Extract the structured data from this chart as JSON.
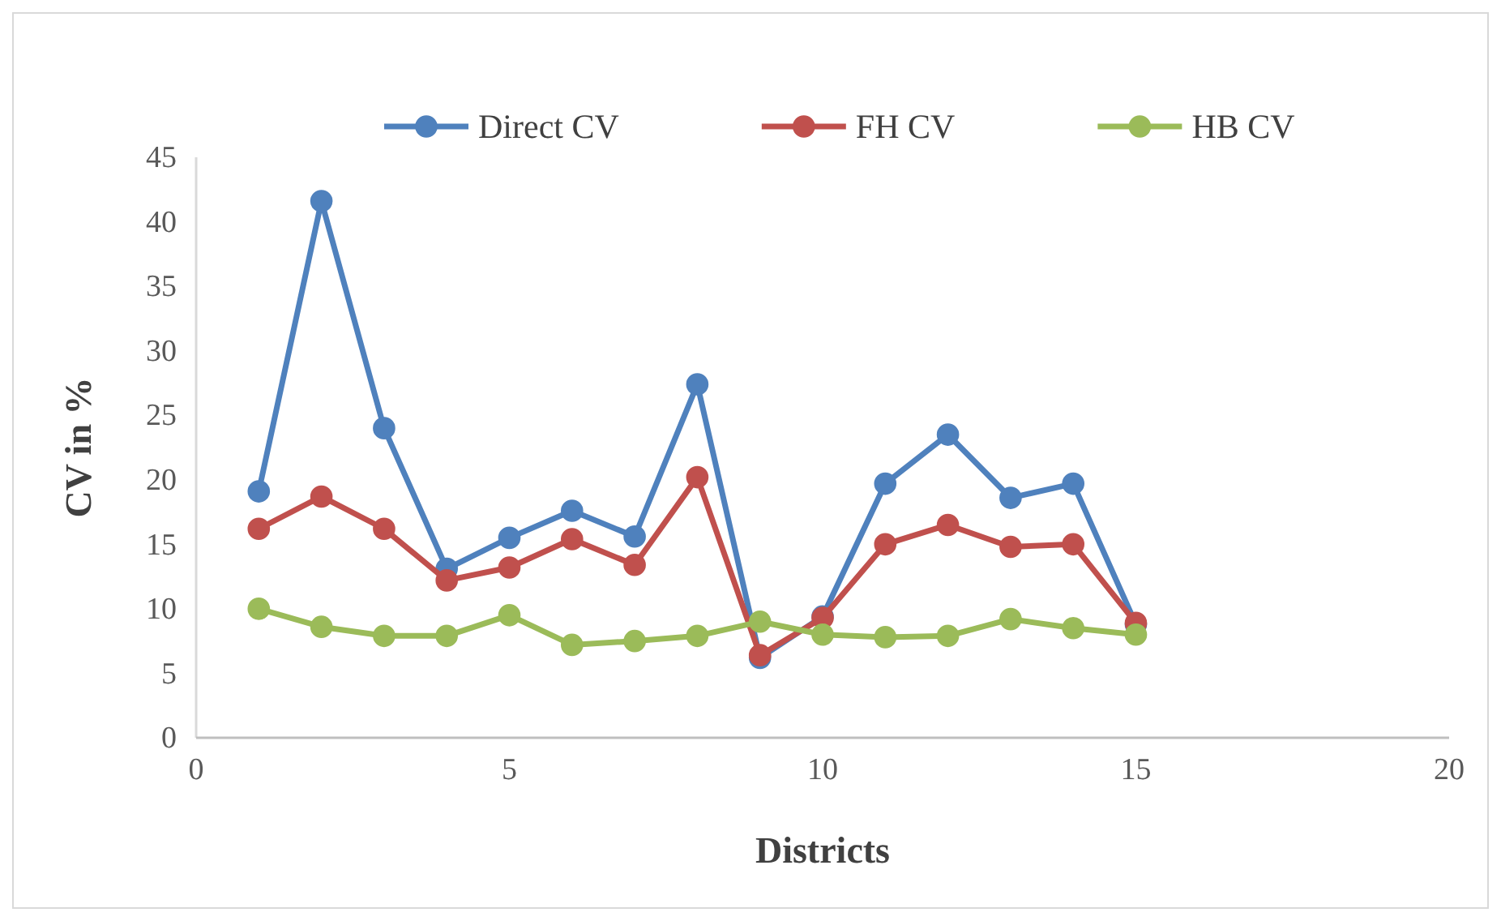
{
  "chart_data": {
    "type": "line",
    "xlabel": "Districts",
    "ylabel": "CV in %",
    "xlim": [
      0,
      20
    ],
    "xticks": [
      0,
      5,
      10,
      15,
      20
    ],
    "ylim": [
      0,
      45
    ],
    "yticks": [
      0,
      5,
      10,
      15,
      20,
      25,
      30,
      35,
      40,
      45
    ],
    "x": [
      1,
      2,
      3,
      4,
      5,
      6,
      7,
      8,
      9,
      10,
      11,
      12,
      13,
      14,
      15
    ],
    "grid": false,
    "legend": "top",
    "marker": "circle",
    "line_style": "solid",
    "series": [
      {
        "name": "Direct CV",
        "color": "#4f81bd",
        "values": [
          19.1,
          41.6,
          24.0,
          13.1,
          15.5,
          17.6,
          15.6,
          27.4,
          6.2,
          9.4,
          19.7,
          23.5,
          18.6,
          19.7,
          8.8
        ]
      },
      {
        "name": "FH CV",
        "color": "#c0504d",
        "values": [
          16.2,
          18.7,
          16.2,
          12.2,
          13.2,
          15.4,
          13.4,
          20.2,
          6.4,
          9.3,
          15.0,
          16.5,
          14.8,
          15.0,
          8.9
        ]
      },
      {
        "name": "HB CV",
        "color": "#9bbb59",
        "values": [
          10.0,
          8.6,
          7.9,
          7.9,
          9.5,
          7.2,
          7.5,
          7.9,
          9.0,
          8.0,
          7.8,
          7.9,
          9.2,
          8.5,
          8.0
        ]
      }
    ]
  }
}
